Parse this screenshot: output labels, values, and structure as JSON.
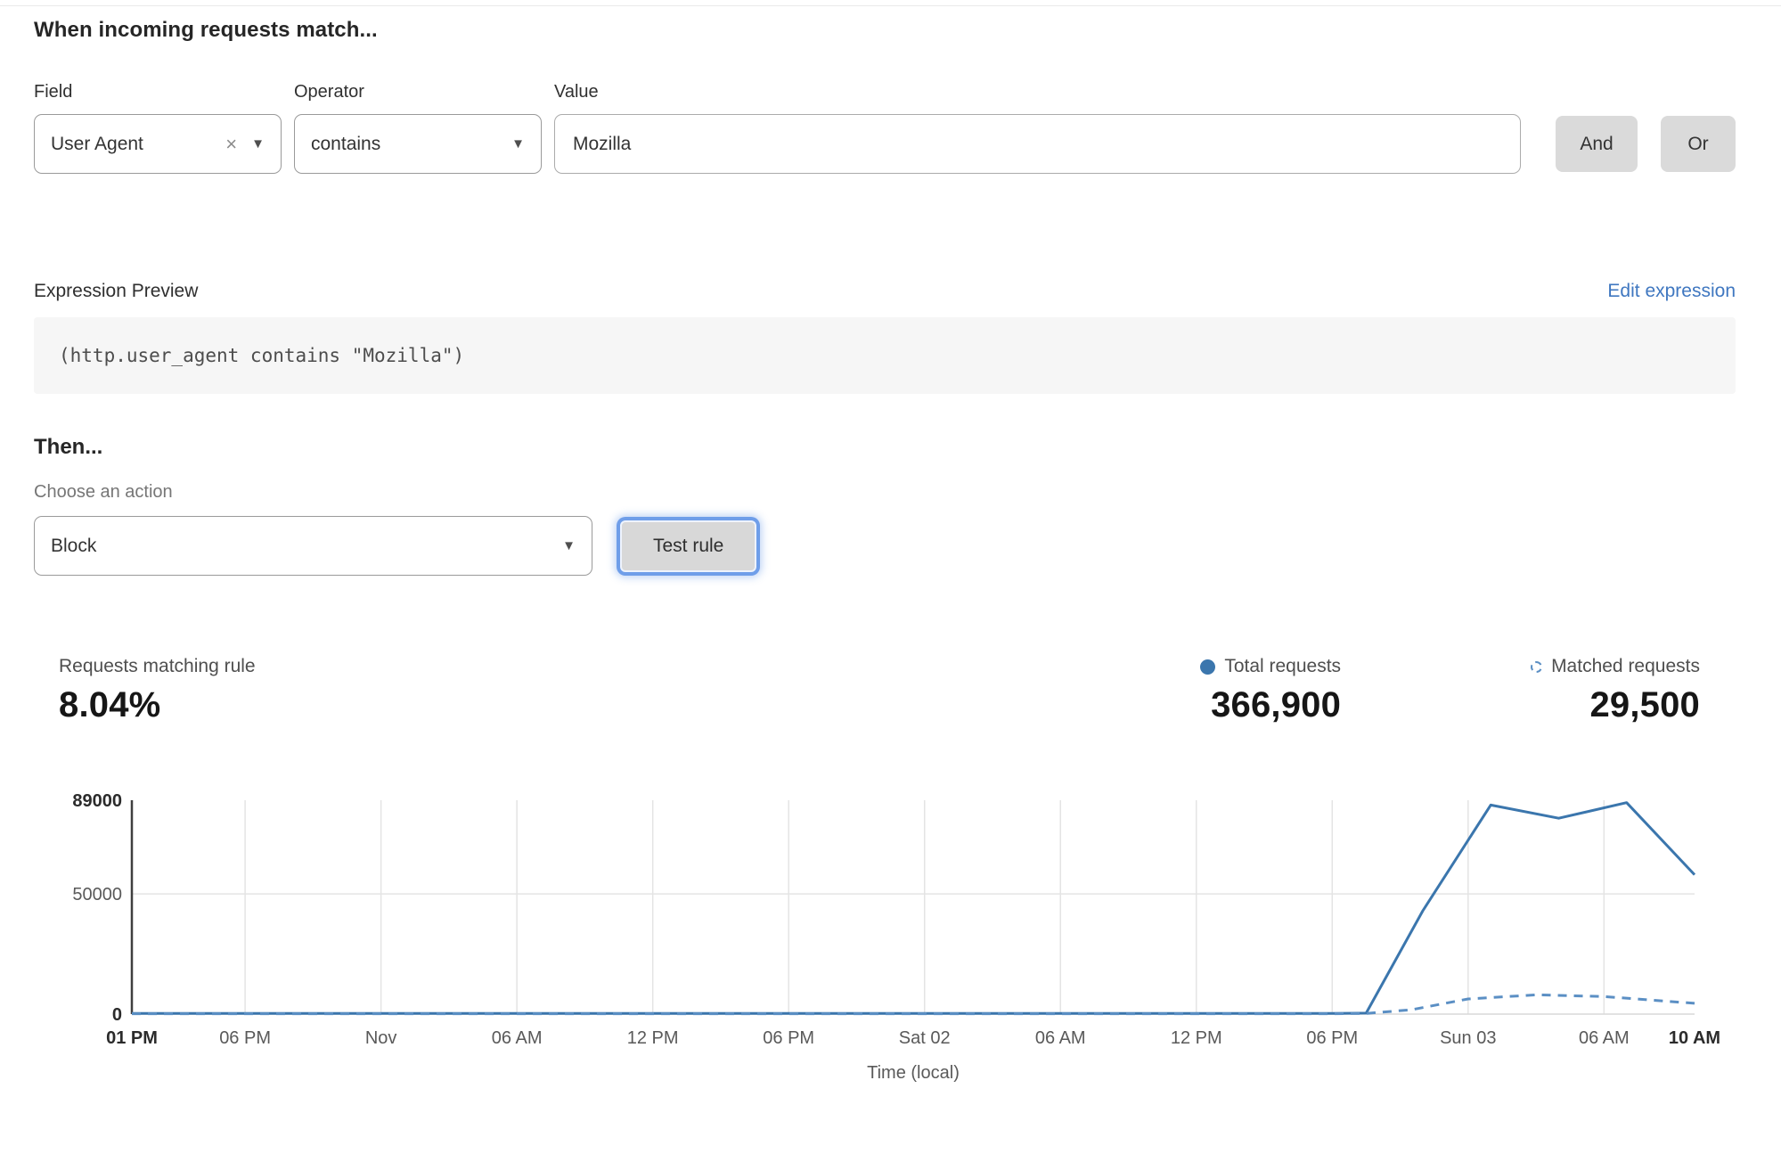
{
  "rule_builder": {
    "title": "When incoming requests match...",
    "field": {
      "label": "Field",
      "value": "User Agent"
    },
    "operator": {
      "label": "Operator",
      "value": "contains"
    },
    "value": {
      "label": "Value",
      "value": "Mozilla"
    },
    "and_label": "And",
    "or_label": "Or"
  },
  "expression": {
    "label": "Expression Preview",
    "edit_link": "Edit expression",
    "code": "(http.user_agent contains \"Mozilla\")"
  },
  "action": {
    "title": "Then...",
    "choose_label": "Choose an action",
    "value": "Block",
    "test_button": "Test rule"
  },
  "stats": {
    "matching": {
      "label": "Requests matching rule",
      "value": "8.04%"
    },
    "total": {
      "label": "Total requests",
      "value": "366,900"
    },
    "matched": {
      "label": "Matched requests",
      "value": "29,500"
    }
  },
  "colors": {
    "total_line": "#3b76ad",
    "matched_line": "#5b8fc4",
    "grid": "#e4e4e4",
    "zero_line": "#d9d9d9",
    "y_axis": "#3f3f3f",
    "tick_label": "#595959",
    "tick_label_bold": "#2b2b2b",
    "link_blue": "#3f77c0"
  },
  "chart_data": {
    "type": "line",
    "title": "",
    "xlabel": "Time (local)",
    "ylabel": "",
    "ylim": [
      0,
      89000
    ],
    "x_range_hours": [
      0,
      69
    ],
    "grid": "vertical gridlines at each x tick, horizontal gridline at 50000, legend shown with stats top-right",
    "y_ticks": [
      {
        "value": 0,
        "label": "0",
        "bold": true
      },
      {
        "value": 50000,
        "label": "50000",
        "bold": false
      },
      {
        "value": 89000,
        "label": "89000",
        "bold": true
      }
    ],
    "x_ticks": [
      {
        "hour": 0,
        "label": "01 PM",
        "bold": true
      },
      {
        "hour": 5,
        "label": "06 PM",
        "bold": false
      },
      {
        "hour": 11,
        "label": "Nov",
        "bold": false
      },
      {
        "hour": 17,
        "label": "06 AM",
        "bold": false
      },
      {
        "hour": 23,
        "label": "12 PM",
        "bold": false
      },
      {
        "hour": 29,
        "label": "06 PM",
        "bold": false
      },
      {
        "hour": 35,
        "label": "Sat 02",
        "bold": false
      },
      {
        "hour": 41,
        "label": "06 AM",
        "bold": false
      },
      {
        "hour": 47,
        "label": "12 PM",
        "bold": false
      },
      {
        "hour": 53,
        "label": "06 PM",
        "bold": false
      },
      {
        "hour": 59,
        "label": "Sun 03",
        "bold": false
      },
      {
        "hour": 65,
        "label": "06 AM",
        "bold": false
      },
      {
        "hour": 69,
        "label": "10 AM",
        "bold": true
      }
    ],
    "series": [
      {
        "name": "Total requests",
        "style": "solid",
        "color": "#3b76ad",
        "points": [
          [
            0,
            300
          ],
          [
            5,
            300
          ],
          [
            11,
            300
          ],
          [
            17,
            300
          ],
          [
            23,
            300
          ],
          [
            29,
            300
          ],
          [
            35,
            300
          ],
          [
            41,
            300
          ],
          [
            47,
            300
          ],
          [
            53,
            300
          ],
          [
            54.5,
            400
          ],
          [
            57,
            43000
          ],
          [
            60,
            87000
          ],
          [
            63,
            81500
          ],
          [
            66,
            88000
          ],
          [
            69,
            58000
          ]
        ]
      },
      {
        "name": "Matched requests",
        "style": "dashed",
        "color": "#5b8fc4",
        "points": [
          [
            0,
            150
          ],
          [
            5,
            150
          ],
          [
            11,
            150
          ],
          [
            17,
            150
          ],
          [
            23,
            150
          ],
          [
            29,
            150
          ],
          [
            35,
            150
          ],
          [
            41,
            150
          ],
          [
            47,
            150
          ],
          [
            53,
            150
          ],
          [
            54.5,
            250
          ],
          [
            56.5,
            1800
          ],
          [
            59,
            6300
          ],
          [
            62,
            8000
          ],
          [
            65,
            7300
          ],
          [
            69,
            4500
          ]
        ]
      }
    ]
  }
}
